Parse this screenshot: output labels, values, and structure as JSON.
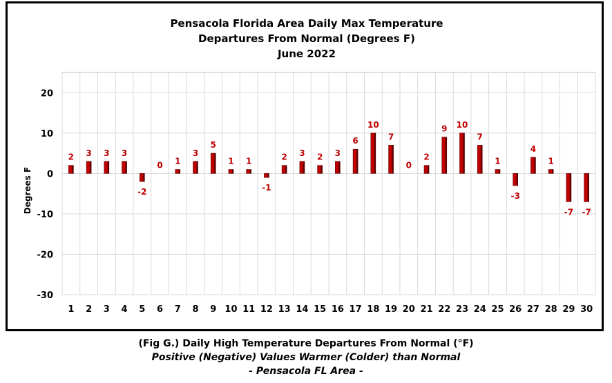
{
  "chart_data": {
    "type": "bar",
    "title": [
      "Pensacola Florida Area Daily Max Temperature",
      "Departures From Normal (Degrees F)",
      "June 2022"
    ],
    "xlabel": "",
    "ylabel": "Degrees F",
    "ylim": [
      -30,
      25
    ],
    "yticks": [
      20,
      10,
      0,
      -10,
      -20,
      -30
    ],
    "grid": true,
    "legend": "none",
    "bar_color": "#c00000",
    "label_color": "#c00000",
    "categories": [
      "1",
      "2",
      "3",
      "4",
      "5",
      "6",
      "7",
      "8",
      "9",
      "10",
      "11",
      "12",
      "13",
      "14",
      "15",
      "16",
      "17",
      "18",
      "19",
      "20",
      "21",
      "22",
      "23",
      "24",
      "25",
      "26",
      "27",
      "28",
      "29",
      "30"
    ],
    "values": [
      2,
      3,
      3,
      3,
      -2,
      0,
      1,
      3,
      5,
      1,
      1,
      -1,
      2,
      3,
      2,
      3,
      6,
      10,
      7,
      0,
      2,
      9,
      10,
      7,
      1,
      -3,
      4,
      1,
      -7,
      -7
    ]
  },
  "caption": {
    "line1": "(Fig G.) Daily High Temperature Departures From Normal (°F)",
    "line2": "Positive (Negative) Values Warmer (Colder) than Normal",
    "line3": "- Pensacola FL Area -"
  }
}
